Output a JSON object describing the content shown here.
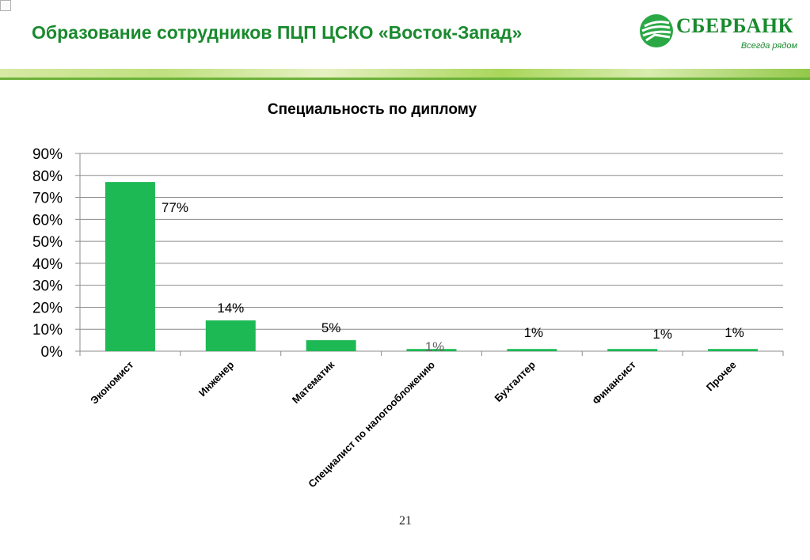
{
  "header": {
    "title": "Образование сотрудников ПЦП ЦСКО «Восток-Запад»",
    "brand_name": "СБЕРБАНК",
    "brand_slogan": "Всегда рядом"
  },
  "colors": {
    "accent": "#1a8a2e",
    "bar": "#1db954"
  },
  "icons": {
    "logo": "sberbank-logo-icon"
  },
  "page_number": "21",
  "chart_data": {
    "type": "bar",
    "title": "Специальность по диплому",
    "xlabel": "",
    "ylabel": "",
    "categories": [
      "Экономист",
      "Инженер",
      "Математик",
      "Специалист по налогообложению",
      "Бухгалтер",
      "Финансист",
      "Прочее"
    ],
    "values": [
      77,
      14,
      5,
      1,
      1,
      1,
      1
    ],
    "data_labels": [
      "77%",
      "14%",
      "5%",
      "1%",
      "1%",
      "1%",
      "1%"
    ],
    "y_ticks": [
      0,
      10,
      20,
      30,
      40,
      50,
      60,
      70,
      80,
      90
    ],
    "y_tick_labels": [
      "0%",
      "10%",
      "20%",
      "30%",
      "40%",
      "50%",
      "60%",
      "70%",
      "80%",
      "90%"
    ],
    "ylim": [
      0,
      90
    ],
    "grid": true,
    "legend": "none"
  }
}
